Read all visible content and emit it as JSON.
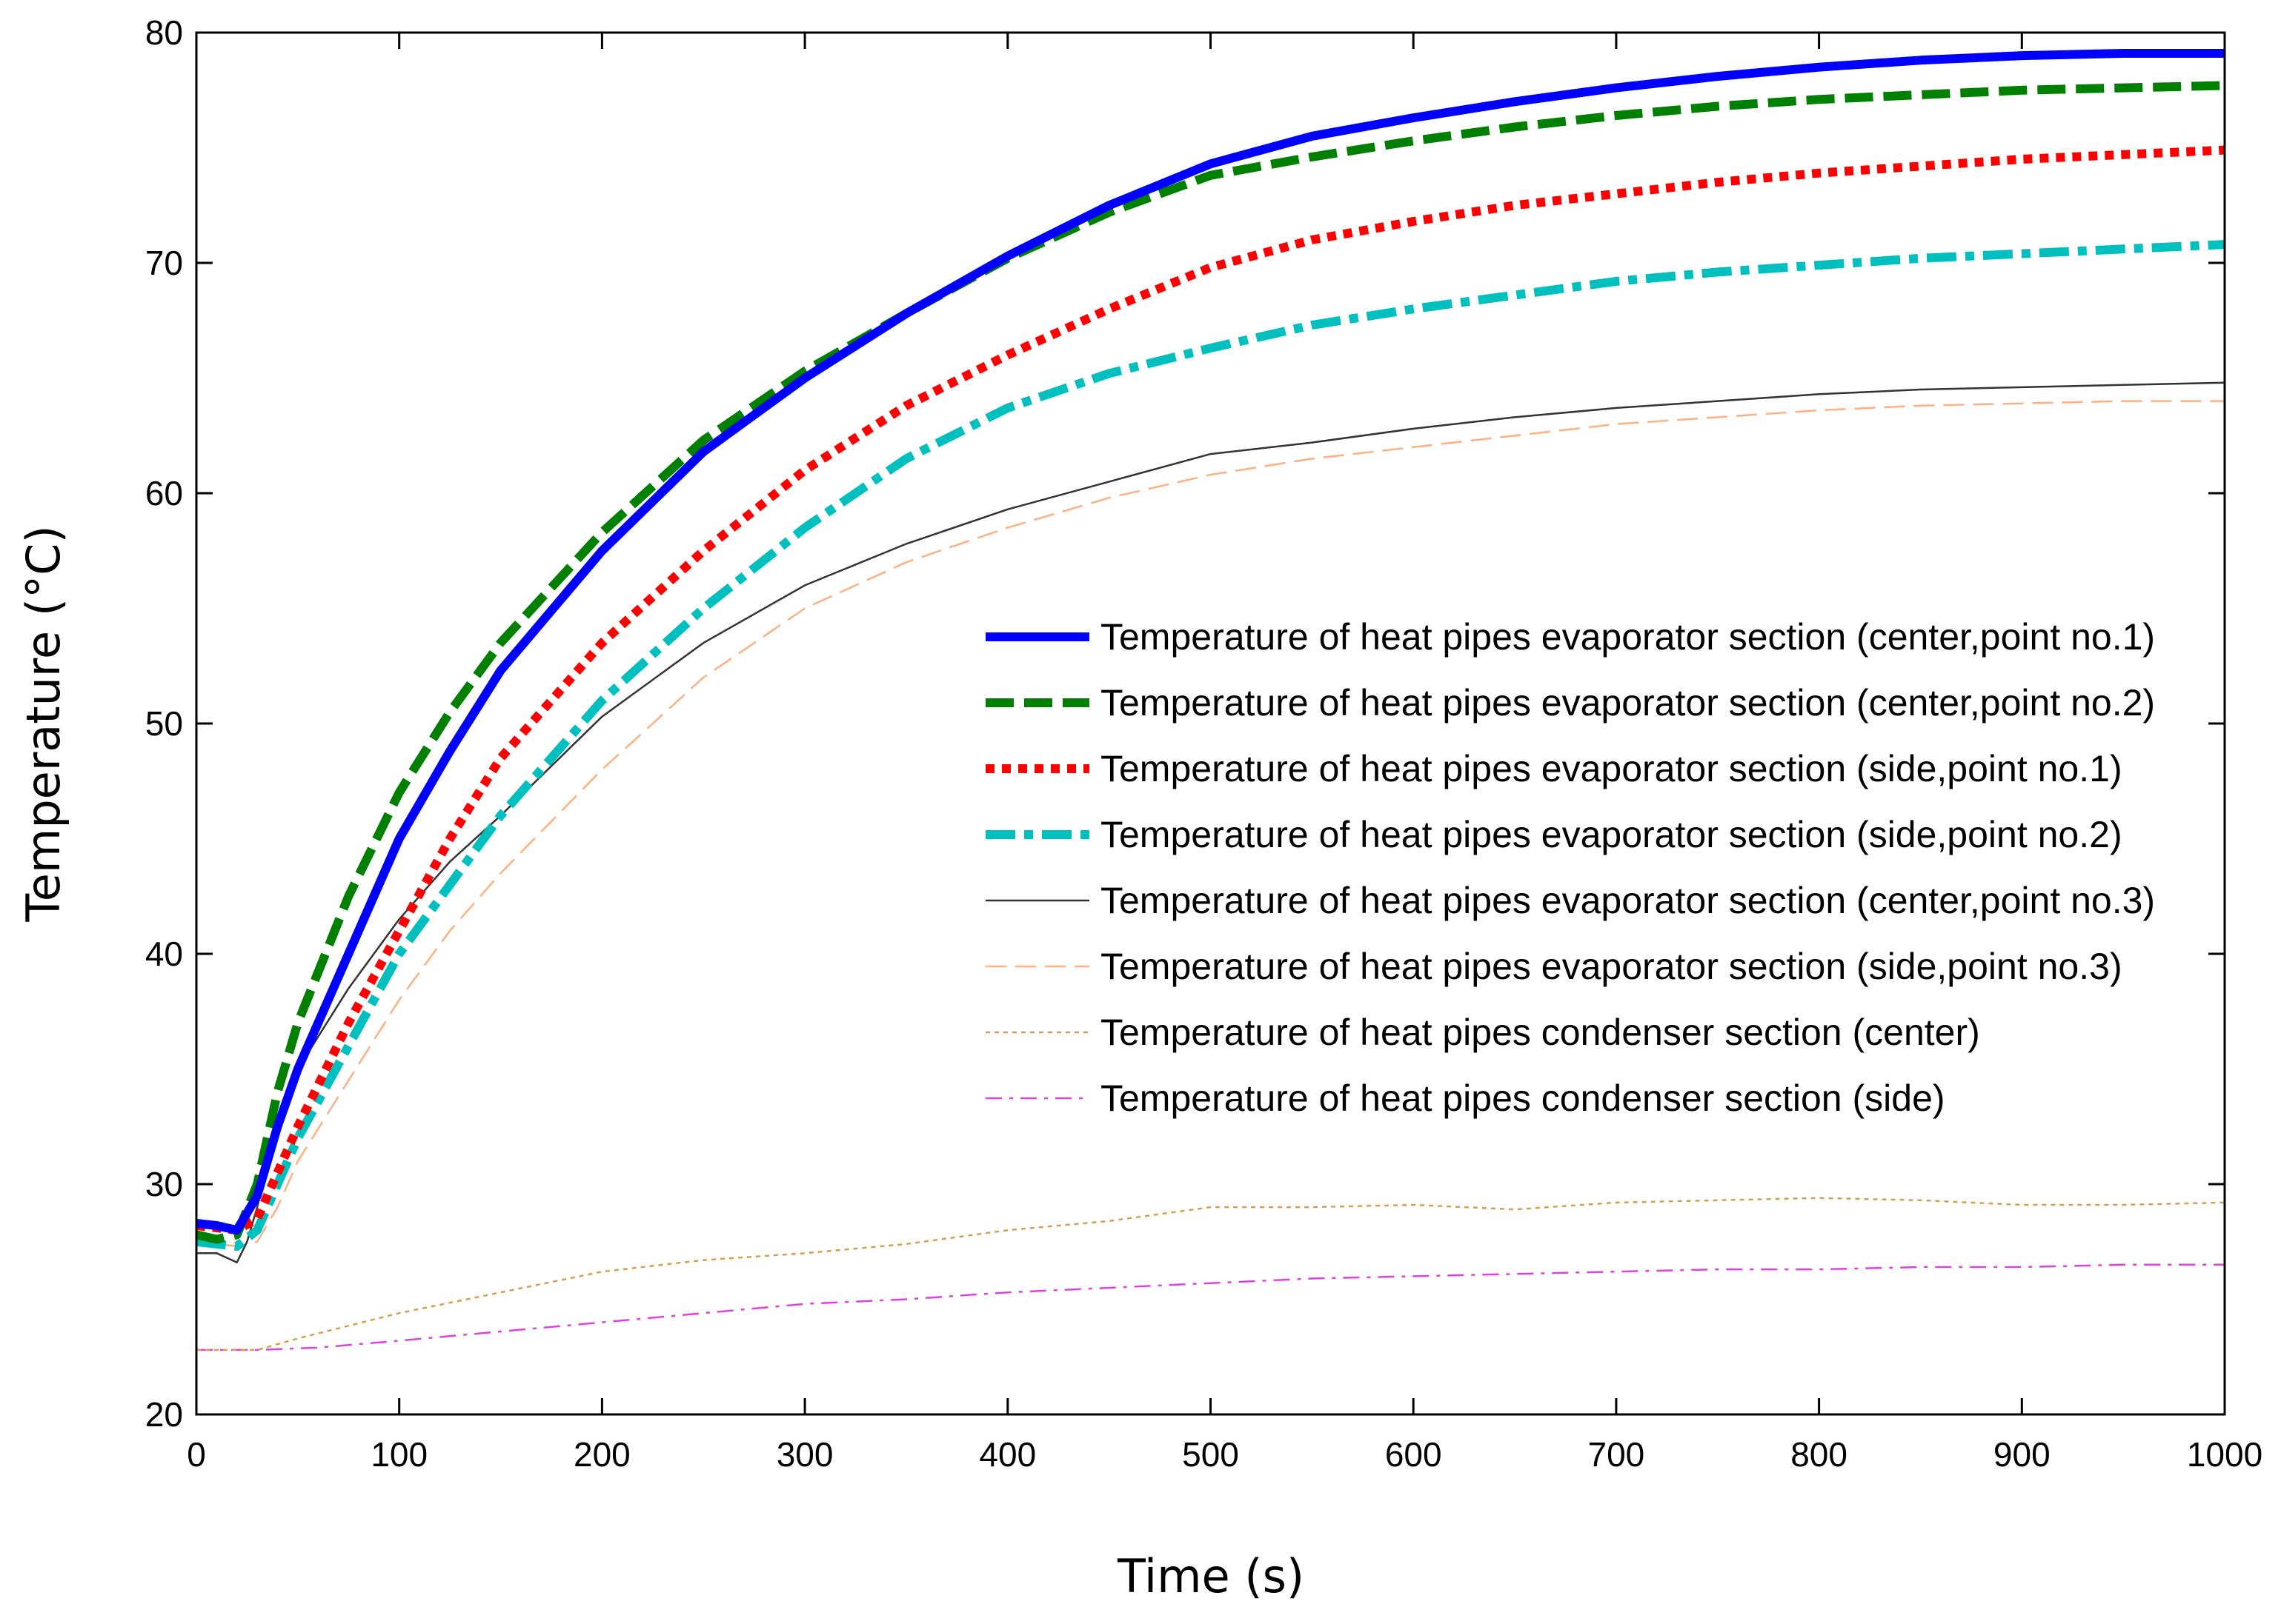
{
  "chart_data": {
    "type": "line",
    "title": "",
    "xlabel": "Time (s)",
    "ylabel": "Temperature (°C)",
    "xlim": [
      0,
      1000
    ],
    "ylim": [
      20,
      80
    ],
    "xticks": [
      "0",
      "100",
      "200",
      "300",
      "400",
      "500",
      "600",
      "700",
      "800",
      "900",
      "1000"
    ],
    "yticks": [
      "20",
      "30",
      "40",
      "50",
      "60",
      "70",
      "80"
    ],
    "legend_position": "right",
    "series": [
      {
        "name": "Temperature of heat pipes evaporator section (center,point no.1)",
        "color": "#0000ff",
        "style": "solid-thick",
        "points": [
          [
            0,
            28.3
          ],
          [
            10,
            28.2
          ],
          [
            20,
            28.0
          ],
          [
            30,
            29.5
          ],
          [
            40,
            32.5
          ],
          [
            50,
            35.0
          ],
          [
            75,
            40.0
          ],
          [
            100,
            45.0
          ],
          [
            125,
            48.8
          ],
          [
            150,
            52.3
          ],
          [
            200,
            57.5
          ],
          [
            250,
            61.8
          ],
          [
            300,
            65.0
          ],
          [
            350,
            67.8
          ],
          [
            400,
            70.3
          ],
          [
            450,
            72.5
          ],
          [
            500,
            74.3
          ],
          [
            550,
            75.5
          ],
          [
            600,
            76.3
          ],
          [
            650,
            77.0
          ],
          [
            700,
            77.6
          ],
          [
            750,
            78.1
          ],
          [
            800,
            78.5
          ],
          [
            850,
            78.8
          ],
          [
            900,
            79.0
          ],
          [
            950,
            79.1
          ],
          [
            1000,
            79.1
          ]
        ]
      },
      {
        "name": "Temperature of heat pipes evaporator section (center,point no.2)",
        "color": "#008000",
        "style": "dashed-thick",
        "points": [
          [
            0,
            27.8
          ],
          [
            10,
            27.6
          ],
          [
            20,
            27.8
          ],
          [
            30,
            30.0
          ],
          [
            40,
            34.0
          ],
          [
            50,
            37.0
          ],
          [
            75,
            42.5
          ],
          [
            100,
            47.0
          ],
          [
            125,
            50.5
          ],
          [
            150,
            53.5
          ],
          [
            200,
            58.3
          ],
          [
            250,
            62.3
          ],
          [
            300,
            65.3
          ],
          [
            350,
            67.8
          ],
          [
            400,
            70.2
          ],
          [
            450,
            72.2
          ],
          [
            500,
            73.8
          ],
          [
            550,
            74.6
          ],
          [
            600,
            75.3
          ],
          [
            650,
            75.9
          ],
          [
            700,
            76.4
          ],
          [
            750,
            76.8
          ],
          [
            800,
            77.1
          ],
          [
            850,
            77.3
          ],
          [
            900,
            77.5
          ],
          [
            950,
            77.6
          ],
          [
            1000,
            77.7
          ]
        ]
      },
      {
        "name": "Temperature of heat pipes evaporator section (side,point no.1)",
        "color": "#ff0000",
        "style": "dotted-thick",
        "points": [
          [
            0,
            28.2
          ],
          [
            10,
            28.1
          ],
          [
            20,
            28.0
          ],
          [
            30,
            28.5
          ],
          [
            40,
            30.5
          ],
          [
            50,
            32.5
          ],
          [
            75,
            37.0
          ],
          [
            100,
            41.0
          ],
          [
            125,
            45.0
          ],
          [
            150,
            48.5
          ],
          [
            200,
            53.5
          ],
          [
            250,
            57.5
          ],
          [
            300,
            61.0
          ],
          [
            350,
            63.8
          ],
          [
            400,
            66.0
          ],
          [
            450,
            68.0
          ],
          [
            500,
            69.8
          ],
          [
            550,
            71.0
          ],
          [
            600,
            71.8
          ],
          [
            650,
            72.5
          ],
          [
            700,
            73.0
          ],
          [
            750,
            73.5
          ],
          [
            800,
            73.9
          ],
          [
            850,
            74.2
          ],
          [
            900,
            74.5
          ],
          [
            950,
            74.7
          ],
          [
            1000,
            74.9
          ]
        ]
      },
      {
        "name": "Temperature of heat pipes evaporator section (side,point no.2)",
        "color": "#00bfbf",
        "style": "dashdot-thick",
        "points": [
          [
            0,
            27.5
          ],
          [
            10,
            27.4
          ],
          [
            20,
            27.3
          ],
          [
            30,
            28.0
          ],
          [
            40,
            30.0
          ],
          [
            50,
            32.0
          ],
          [
            75,
            36.0
          ],
          [
            100,
            40.0
          ],
          [
            125,
            43.0
          ],
          [
            150,
            46.0
          ],
          [
            200,
            51.0
          ],
          [
            250,
            55.0
          ],
          [
            300,
            58.5
          ],
          [
            350,
            61.5
          ],
          [
            400,
            63.7
          ],
          [
            450,
            65.2
          ],
          [
            500,
            66.3
          ],
          [
            550,
            67.3
          ],
          [
            600,
            68.0
          ],
          [
            650,
            68.6
          ],
          [
            700,
            69.2
          ],
          [
            750,
            69.6
          ],
          [
            800,
            69.9
          ],
          [
            850,
            70.2
          ],
          [
            900,
            70.4
          ],
          [
            950,
            70.6
          ],
          [
            1000,
            70.8
          ]
        ]
      },
      {
        "name": "Temperature of heat pipes evaporator section (center,point no.3)",
        "color": "#333333",
        "style": "solid-thin",
        "points": [
          [
            0,
            27.0
          ],
          [
            10,
            27.0
          ],
          [
            15,
            26.8
          ],
          [
            20,
            26.6
          ],
          [
            25,
            27.5
          ],
          [
            30,
            29.0
          ],
          [
            40,
            32.5
          ],
          [
            50,
            35.0
          ],
          [
            75,
            38.5
          ],
          [
            100,
            41.5
          ],
          [
            125,
            44.0
          ],
          [
            150,
            46.0
          ],
          [
            200,
            50.3
          ],
          [
            250,
            53.5
          ],
          [
            300,
            56.0
          ],
          [
            350,
            57.8
          ],
          [
            400,
            59.3
          ],
          [
            450,
            60.5
          ],
          [
            500,
            61.7
          ],
          [
            550,
            62.2
          ],
          [
            600,
            62.8
          ],
          [
            650,
            63.3
          ],
          [
            700,
            63.7
          ],
          [
            750,
            64.0
          ],
          [
            800,
            64.3
          ],
          [
            850,
            64.5
          ],
          [
            900,
            64.6
          ],
          [
            950,
            64.7
          ],
          [
            1000,
            64.8
          ]
        ]
      },
      {
        "name": "Temperature of heat pipes evaporator section (side,point no.3)",
        "color": "#ffb080",
        "style": "dashed-thin",
        "points": [
          [
            0,
            27.5
          ],
          [
            10,
            27.4
          ],
          [
            20,
            27.3
          ],
          [
            30,
            27.5
          ],
          [
            40,
            29.0
          ],
          [
            50,
            31.0
          ],
          [
            75,
            34.5
          ],
          [
            100,
            38.0
          ],
          [
            125,
            41.0
          ],
          [
            150,
            43.5
          ],
          [
            200,
            48.0
          ],
          [
            250,
            52.0
          ],
          [
            300,
            55.0
          ],
          [
            350,
            57.0
          ],
          [
            400,
            58.5
          ],
          [
            450,
            59.8
          ],
          [
            500,
            60.8
          ],
          [
            550,
            61.5
          ],
          [
            600,
            62.0
          ],
          [
            650,
            62.5
          ],
          [
            700,
            63.0
          ],
          [
            750,
            63.3
          ],
          [
            800,
            63.6
          ],
          [
            850,
            63.8
          ],
          [
            900,
            63.9
          ],
          [
            950,
            64.0
          ],
          [
            1000,
            64.0
          ]
        ]
      },
      {
        "name": "Temperature of heat pipes condenser section (center)",
        "color": "#d4a050",
        "style": "dotted-thin",
        "points": [
          [
            0,
            22.8
          ],
          [
            30,
            22.8
          ],
          [
            50,
            23.3
          ],
          [
            100,
            24.4
          ],
          [
            150,
            25.3
          ],
          [
            200,
            26.2
          ],
          [
            250,
            26.7
          ],
          [
            300,
            27.0
          ],
          [
            350,
            27.4
          ],
          [
            400,
            28.0
          ],
          [
            450,
            28.4
          ],
          [
            500,
            29.0
          ],
          [
            550,
            29.0
          ],
          [
            600,
            29.1
          ],
          [
            650,
            28.9
          ],
          [
            700,
            29.2
          ],
          [
            750,
            29.3
          ],
          [
            800,
            29.4
          ],
          [
            850,
            29.3
          ],
          [
            900,
            29.1
          ],
          [
            950,
            29.1
          ],
          [
            1000,
            29.2
          ]
        ]
      },
      {
        "name": "Temperature of heat pipes condenser section (side)",
        "color": "#e040e0",
        "style": "dashdot-thin",
        "points": [
          [
            0,
            22.8
          ],
          [
            30,
            22.8
          ],
          [
            60,
            22.9
          ],
          [
            100,
            23.2
          ],
          [
            150,
            23.6
          ],
          [
            200,
            24.0
          ],
          [
            250,
            24.4
          ],
          [
            300,
            24.8
          ],
          [
            350,
            25.0
          ],
          [
            400,
            25.3
          ],
          [
            450,
            25.5
          ],
          [
            500,
            25.7
          ],
          [
            550,
            25.9
          ],
          [
            600,
            26.0
          ],
          [
            650,
            26.1
          ],
          [
            700,
            26.2
          ],
          [
            750,
            26.3
          ],
          [
            800,
            26.3
          ],
          [
            850,
            26.4
          ],
          [
            900,
            26.4
          ],
          [
            950,
            26.5
          ],
          [
            1000,
            26.5
          ]
        ]
      }
    ]
  }
}
